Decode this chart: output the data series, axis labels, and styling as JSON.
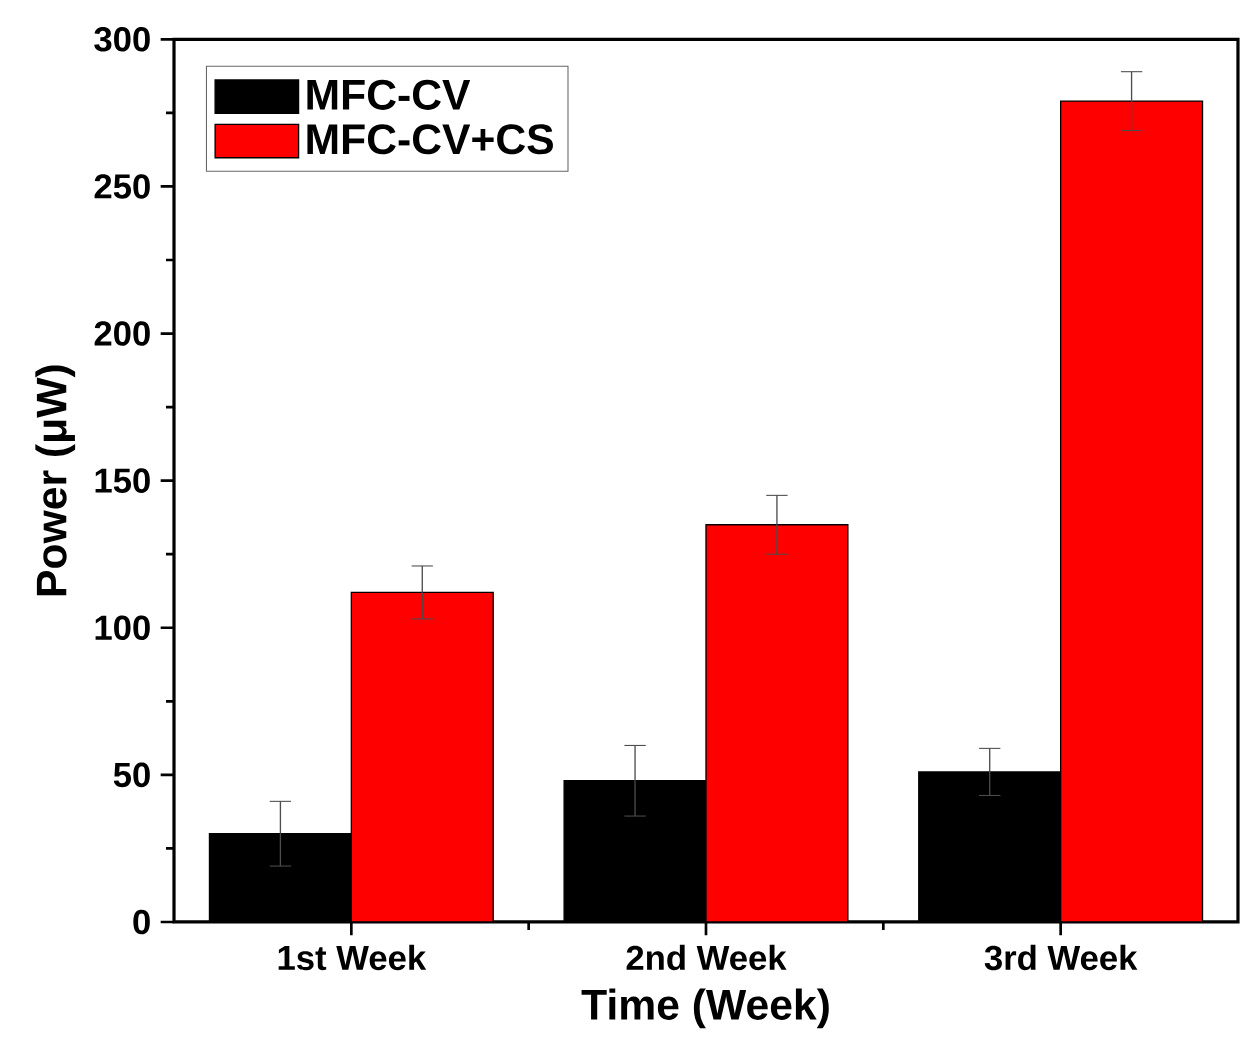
{
  "chart_data": {
    "type": "bar",
    "xlabel": "Time (Week)",
    "ylabel": "Power (μW)",
    "categories": [
      "1st Week",
      "2nd Week",
      "3rd Week"
    ],
    "series": [
      {
        "name": "MFC-CV",
        "color": "#000000",
        "values": [
          30,
          48,
          51
        ],
        "errors": [
          11,
          12,
          8
        ]
      },
      {
        "name": "MFC-CV+CS",
        "color": "#ff0000",
        "values": [
          112,
          135,
          279
        ],
        "errors": [
          9,
          10,
          10
        ]
      }
    ],
    "ylim": [
      0,
      300
    ],
    "yticks": [
      0,
      50,
      100,
      150,
      200,
      250,
      300
    ],
    "legend": "top left"
  }
}
